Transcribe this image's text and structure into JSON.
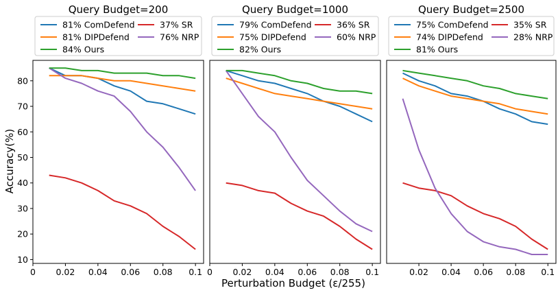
{
  "figure": {
    "ylabel": "Accuracy(%)",
    "xlabel": "Perturbation Budget (ε/255)"
  },
  "chart_data": [
    {
      "type": "line",
      "title": "Query Budget=200",
      "xlim": [
        0,
        0.105
      ],
      "ylim": [
        8.5,
        88
      ],
      "xticks": [
        0,
        0.02,
        0.04,
        0.06,
        0.08,
        0.1
      ],
      "xtick_labels": [
        "0",
        "0.02",
        "0.04",
        "0.06",
        "0.08",
        "0.1"
      ],
      "yticks": [
        10,
        20,
        30,
        40,
        50,
        60,
        70,
        80
      ],
      "x": [
        0.01,
        0.02,
        0.03,
        0.04,
        0.05,
        0.06,
        0.07,
        0.08,
        0.09,
        0.1
      ],
      "series": [
        {
          "name": "ComDefend",
          "legend": "81% ComDefend",
          "color": "#1f77b4",
          "values": [
            85,
            82,
            82,
            81,
            78,
            76,
            72,
            71,
            69,
            67
          ]
        },
        {
          "name": "SR",
          "legend": "37% SR",
          "color": "#d62728",
          "values": [
            43,
            42,
            40,
            37,
            33,
            31,
            28,
            23,
            19,
            14
          ]
        },
        {
          "name": "DIPDefend",
          "legend": "81% DIPDefend",
          "color": "#ff7f0e",
          "values": [
            82,
            82,
            82,
            81,
            80,
            80,
            79,
            78,
            77,
            76
          ]
        },
        {
          "name": "NRP",
          "legend": "76% NRP",
          "color": "#9467bd",
          "values": [
            85,
            81,
            79,
            76,
            74,
            68,
            60,
            54,
            46,
            37
          ]
        },
        {
          "name": "Ours",
          "legend": "84% Ours",
          "color": "#2ca02c",
          "values": [
            85,
            85,
            84,
            84,
            83,
            83,
            83,
            82,
            82,
            81
          ]
        }
      ]
    },
    {
      "type": "line",
      "title": "Query Budget=1000",
      "xlim": [
        0,
        0.105
      ],
      "ylim": [
        8.5,
        88
      ],
      "xticks": [
        0,
        0.02,
        0.04,
        0.06,
        0.08,
        0.1
      ],
      "xtick_labels": [
        "0",
        "0.02",
        "0.04",
        "0.06",
        "0.08",
        "0.1"
      ],
      "yticks": [],
      "x": [
        0.01,
        0.02,
        0.03,
        0.04,
        0.05,
        0.06,
        0.07,
        0.08,
        0.09,
        0.1
      ],
      "series": [
        {
          "name": "ComDefend",
          "legend": "79% ComDefend",
          "color": "#1f77b4",
          "values": [
            84,
            82,
            80,
            79,
            77,
            75,
            72,
            70,
            67,
            64
          ]
        },
        {
          "name": "SR",
          "legend": "36% SR",
          "color": "#d62728",
          "values": [
            40,
            39,
            37,
            36,
            32,
            29,
            27,
            23,
            18,
            14
          ]
        },
        {
          "name": "DIPDefend",
          "legend": "75% DIPDefend",
          "color": "#ff7f0e",
          "values": [
            81,
            79,
            77,
            75,
            74,
            73,
            72,
            71,
            70,
            69
          ]
        },
        {
          "name": "NRP",
          "legend": "60% NRP",
          "color": "#9467bd",
          "values": [
            84,
            75,
            66,
            60,
            50,
            41,
            35,
            29,
            24,
            21
          ]
        },
        {
          "name": "Ours",
          "legend": "82% Ours",
          "color": "#2ca02c",
          "values": [
            84,
            84,
            83,
            82,
            80,
            79,
            77,
            76,
            76,
            75
          ]
        }
      ]
    },
    {
      "type": "line",
      "title": "Query Budget=2500",
      "xlim": [
        0,
        0.105
      ],
      "ylim": [
        8.5,
        88
      ],
      "xticks": [
        0.02,
        0.04,
        0.06,
        0.08,
        0.1
      ],
      "xtick_labels": [
        "0.02",
        "0.04",
        "0.06",
        "0.08",
        "0.1"
      ],
      "yticks": [],
      "x": [
        0.01,
        0.02,
        0.03,
        0.04,
        0.05,
        0.06,
        0.07,
        0.08,
        0.09,
        0.1
      ],
      "series": [
        {
          "name": "ComDefend",
          "legend": "75% ComDefend",
          "color": "#1f77b4",
          "values": [
            83,
            80,
            78,
            75,
            74,
            72,
            69,
            67,
            64,
            63
          ]
        },
        {
          "name": "SR",
          "legend": "35% SR",
          "color": "#d62728",
          "values": [
            40,
            38,
            37,
            35,
            31,
            28,
            26,
            23,
            18,
            14
          ]
        },
        {
          "name": "DIPDefend",
          "legend": "74% DIPDefend",
          "color": "#ff7f0e",
          "values": [
            81,
            78,
            76,
            74,
            73,
            72,
            71,
            69,
            68,
            67
          ]
        },
        {
          "name": "NRP",
          "legend": "28% NRP",
          "color": "#9467bd",
          "values": [
            73,
            53,
            38,
            28,
            21,
            17,
            15,
            14,
            12,
            12
          ]
        },
        {
          "name": "Ours",
          "legend": "81% Ours",
          "color": "#2ca02c",
          "values": [
            84,
            83,
            82,
            81,
            80,
            78,
            77,
            75,
            74,
            73
          ]
        }
      ]
    }
  ]
}
